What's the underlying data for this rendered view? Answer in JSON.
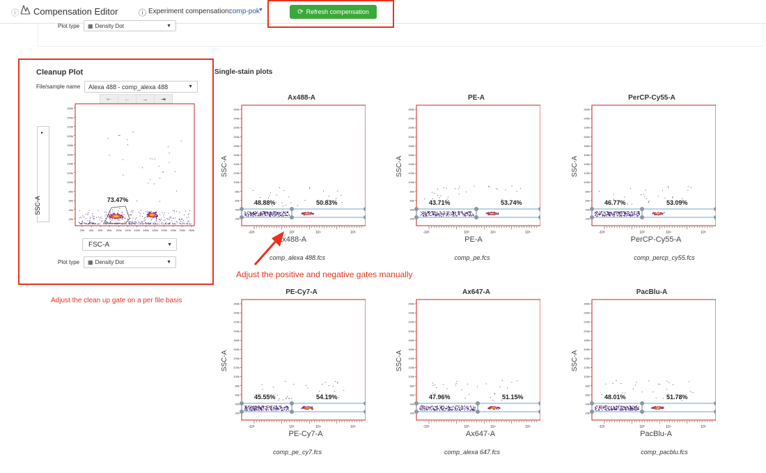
{
  "header": {
    "title": "Compensation Editor",
    "experiment_label": "Experiment compensation:",
    "experiment_value": "comp-pok",
    "refresh_label": "Refresh compensation"
  },
  "top_panel": {
    "plot_type_label": "Plot type",
    "plot_type_value": "Density Dot"
  },
  "cleanup": {
    "title": "Cleanup Plot",
    "file_label": "File/sample name",
    "file_value": "Alexa 488 - comp_alexa 488",
    "y_axis": "SSC-A",
    "x_axis": "FSC-A",
    "gate_pct": "73.47%",
    "y_ticks": [
      "260k",
      "240k",
      "220k",
      "200k",
      "180k",
      "160k",
      "140k",
      "120k",
      "100k",
      "80k",
      "60k",
      "40k",
      "20k"
    ],
    "x_ticks": [
      "20k",
      "40k",
      "60k",
      "80k",
      "100k",
      "120k",
      "140k",
      "160k",
      "180k",
      "200k",
      "220k",
      "240k",
      "260k"
    ],
    "plot_type_label": "Plot type",
    "plot_type_value": "Density Dot"
  },
  "single_stain": {
    "title": "Single-stain plots",
    "y_axis": "SSC-A",
    "y_ticks": [
      "260k",
      "240k",
      "220k",
      "200k",
      "180k",
      "160k",
      "140k",
      "120k",
      "100k",
      "80k",
      "60k",
      "40k",
      "20k"
    ],
    "plots": [
      {
        "title": "Ax488-A",
        "xlabel": "Ax488-A",
        "neg": "48.88%",
        "pos": "50.83%",
        "file": "comp_alexa 488.fcs"
      },
      {
        "title": "PE-A",
        "xlabel": "PE-A",
        "neg": "43.71%",
        "pos": "53.74%",
        "file": "comp_pe.fcs"
      },
      {
        "title": "PerCP-Cy55-A",
        "xlabel": "PerCP-Cy55-A",
        "neg": "46.77%",
        "pos": "53.09%",
        "file": "comp_percp_cy55.fcs"
      },
      {
        "title": "PE-Cy7-A",
        "xlabel": "PE-Cy7-A",
        "neg": "45.55%",
        "pos": "54.19%",
        "file": "comp_pe_cy7.fcs"
      },
      {
        "title": "Ax647-A",
        "xlabel": "Ax647-A",
        "neg": "47.96%",
        "pos": "51.15%",
        "file": "comp_alexa 647.fcs"
      },
      {
        "title": "PacBlu-A",
        "xlabel": "PacBlu-A",
        "neg": "48.01%",
        "pos": "51.78%",
        "file": "comp_pacblu.fcs"
      }
    ]
  },
  "annotations": {
    "gates": "Adjust the positive and negative gates manually",
    "cleanup": "Adjust the clean up gate on a per file basis"
  },
  "colors": {
    "accent_red": "#e8321a",
    "refresh_green": "#3ba83a",
    "plot_border": "#cc2222",
    "gate_blue": "#4a8fc0",
    "link_blue": "#2a58a8"
  }
}
